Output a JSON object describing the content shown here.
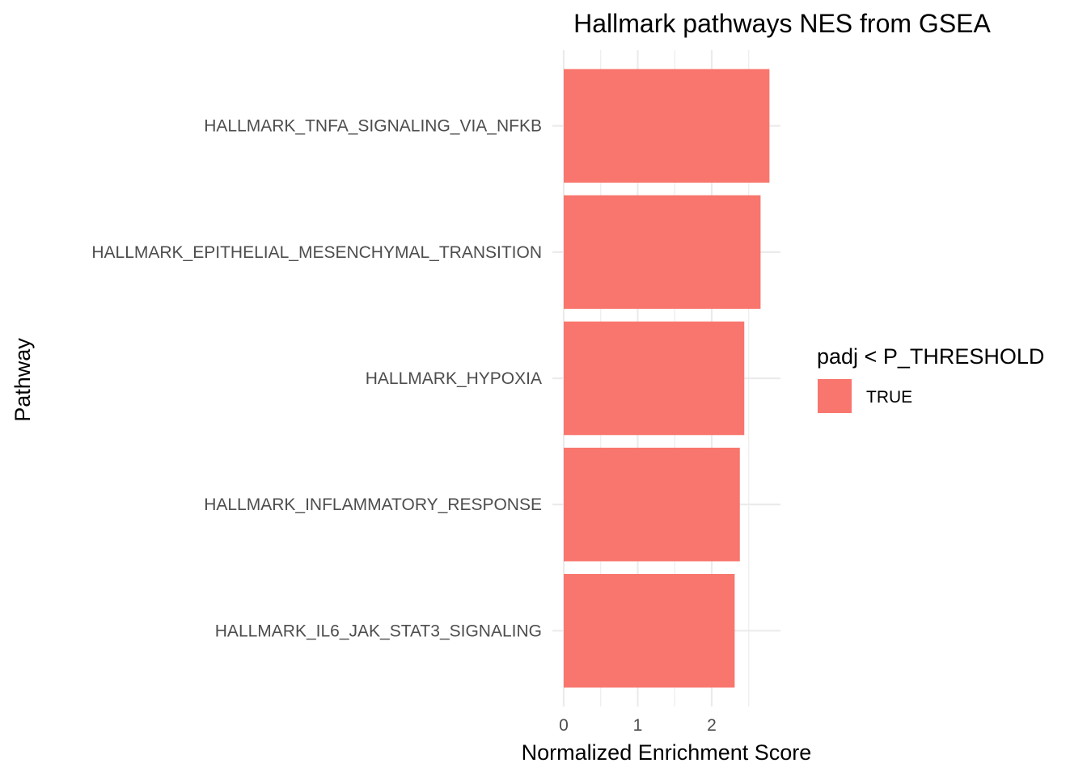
{
  "chart_data": {
    "type": "bar",
    "orientation": "horizontal",
    "title": "Hallmark pathways NES from GSEA",
    "xlabel": "Normalized Enrichment Score",
    "ylabel": "Pathway",
    "categories": [
      "HALLMARK_TNFA_SIGNALING_VIA_NFKB",
      "HALLMARK_EPITHELIAL_MESENCHYMAL_TRANSITION",
      "HALLMARK_HYPOXIA",
      "HALLMARK_INFLAMMATORY_RESPONSE",
      "HALLMARK_IL6_JAK_STAT3_SIGNALING"
    ],
    "values": [
      2.78,
      2.66,
      2.44,
      2.38,
      2.31
    ],
    "xlim": [
      0,
      2.9
    ],
    "xticks": [
      0,
      1,
      2
    ],
    "xtick_labels": [
      "0",
      "1",
      "2"
    ],
    "grid": true,
    "bar_color": "#F8766D",
    "legend": {
      "title": "padj < P_THRESHOLD",
      "entries": [
        {
          "label": "TRUE",
          "color": "#F8766D"
        }
      ],
      "position": "right"
    }
  }
}
